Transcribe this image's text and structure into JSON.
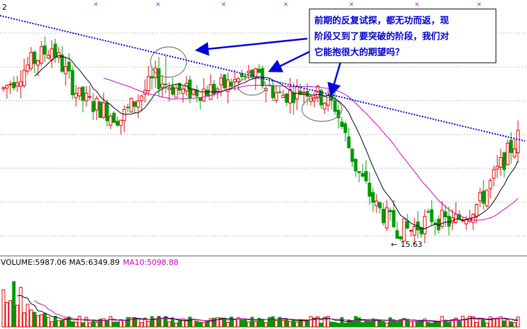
{
  "chart_data": {
    "type": "candlestick",
    "price_panel": {
      "annotation_text": [
        "前期的反复试探，都无功而返，现",
        "阶段又到了要突破的阶段，我们对",
        "它能抱很大的期望吗？"
      ],
      "low_label": "15.63",
      "corner_label": "2",
      "trend_line": {
        "from_price": 28.2,
        "to_price": 21.0
      },
      "grid": true
    },
    "volume_panel": {
      "label_volume": "VOLUME:5987.06",
      "label_ma5": "MA5:6349.89",
      "label_ma10": "MA10:5098.88"
    },
    "colors": {
      "up": "#e00000",
      "down": "#009900",
      "ma_short": "#000000",
      "ma_long": "#cc00cc",
      "trend": "#0000dd",
      "annotation_border": "#000000",
      "grid": "#888888",
      "marker": "#cc00cc"
    }
  }
}
